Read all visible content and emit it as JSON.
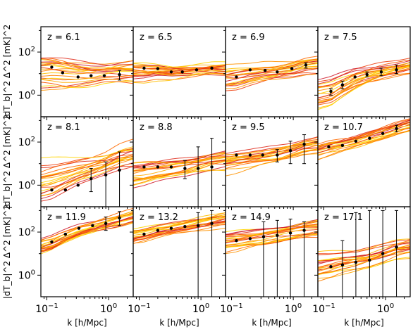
{
  "figure": {
    "xlabel": "k  [h/Mpc]",
    "ylabel": "|dT_b|^2 Δ^2  [mK]^2"
  },
  "chart_data": [
    {
      "type": "line",
      "title": "z = 6.1",
      "xscale": "log",
      "yscale": "log",
      "xlim": [
        0.08,
        2.5
      ],
      "ylim": [
        0.1,
        1500
      ],
      "xticks": [
        "10^-1",
        "10^0"
      ],
      "yticks": [
        "10^0",
        "10^2"
      ],
      "points": {
        "x": [
          0.12,
          0.18,
          0.32,
          0.52,
          0.85,
          1.5
        ],
        "y": [
          20,
          11,
          7,
          8,
          8,
          9
        ],
        "err_lo": [
          null,
          null,
          null,
          null,
          null,
          5
        ],
        "err_hi": [
          null,
          null,
          null,
          null,
          null,
          14
        ]
      },
      "bands": {
        "mid": [
          10,
          9,
          8,
          8,
          9,
          10
        ],
        "spread": [
          0.8,
          0.8,
          0.7,
          0.6,
          0.5,
          0.5
        ],
        "slope": 0
      }
    },
    {
      "type": "line",
      "title": "z = 6.5",
      "xscale": "log",
      "yscale": "log",
      "xlim": [
        0.08,
        2.5
      ],
      "ylim": [
        0.1,
        1500
      ],
      "points": {
        "x": [
          0.12,
          0.2,
          0.33,
          0.5,
          0.85,
          1.5
        ],
        "y": [
          18,
          17,
          12,
          12,
          15,
          18
        ],
        "err_lo": [
          null,
          null,
          null,
          null,
          null,
          null
        ],
        "err_hi": [
          null,
          null,
          null,
          null,
          null,
          null
        ]
      },
      "bands": {
        "mid": [
          12,
          13,
          12,
          13,
          15,
          17
        ],
        "spread": [
          0.5,
          0.4,
          0.35,
          0.3,
          0.3,
          0.3
        ],
        "slope": 0
      }
    },
    {
      "type": "line",
      "title": "z = 6.9",
      "xscale": "log",
      "yscale": "log",
      "xlim": [
        0.08,
        2.5
      ],
      "ylim": [
        0.1,
        1500
      ],
      "points": {
        "x": [
          0.12,
          0.2,
          0.35,
          0.55,
          0.95,
          1.6
        ],
        "y": [
          7,
          15,
          14,
          12,
          17,
          25
        ],
        "err_lo": [
          null,
          null,
          null,
          null,
          null,
          18
        ],
        "err_hi": [
          null,
          null,
          null,
          null,
          null,
          32
        ]
      },
      "bands": {
        "mid": [
          8,
          10,
          12,
          13,
          16,
          22
        ],
        "spread": [
          0.6,
          0.5,
          0.45,
          0.4,
          0.35,
          0.3
        ],
        "slope": 0.2
      }
    },
    {
      "type": "line",
      "title": "z = 7.5",
      "xscale": "log",
      "yscale": "log",
      "xlim": [
        0.08,
        2.5
      ],
      "ylim": [
        0.1,
        1500
      ],
      "points": {
        "x": [
          0.13,
          0.2,
          0.32,
          0.5,
          0.85,
          1.5
        ],
        "y": [
          1.5,
          3,
          7,
          9,
          12,
          15
        ],
        "err_lo": [
          1,
          2,
          null,
          7,
          8,
          10
        ],
        "err_hi": [
          2,
          4.5,
          null,
          12,
          18,
          25
        ]
      },
      "bands": {
        "mid": [
          1.5,
          3,
          6,
          9,
          13,
          18
        ],
        "spread": [
          0.7,
          0.6,
          0.5,
          0.4,
          0.35,
          0.3
        ],
        "slope": 0.6
      }
    },
    {
      "type": "line",
      "title": "z = 8.1",
      "xscale": "log",
      "yscale": "log",
      "xlim": [
        0.08,
        2.5
      ],
      "ylim": [
        0.1,
        1500
      ],
      "points": {
        "x": [
          0.12,
          0.2,
          0.32,
          0.52,
          0.9,
          1.5
        ],
        "y": [
          0.6,
          0.6,
          1,
          2,
          3,
          5
        ],
        "err_lo": [
          null,
          null,
          null,
          0.5,
          0.1,
          0.1
        ],
        "err_hi": [
          null,
          null,
          null,
          6,
          12,
          35
        ]
      },
      "bands": {
        "mid": [
          1.5,
          2.5,
          4,
          6,
          10,
          18
        ],
        "spread": [
          0.9,
          0.8,
          0.7,
          0.6,
          0.5,
          0.5
        ],
        "slope": 0.6
      }
    },
    {
      "type": "line",
      "title": "z = 8.8",
      "xscale": "log",
      "yscale": "log",
      "xlim": [
        0.08,
        2.5
      ],
      "ylim": [
        0.1,
        1500
      ],
      "points": {
        "x": [
          0.12,
          0.2,
          0.33,
          0.55,
          0.9,
          1.5
        ],
        "y": [
          7,
          7,
          7,
          6,
          6,
          7
        ],
        "err_lo": [
          null,
          null,
          null,
          2,
          0.1,
          0.1
        ],
        "err_hi": [
          null,
          null,
          null,
          14,
          60,
          150
        ]
      },
      "bands": {
        "mid": [
          4,
          5,
          6,
          7,
          9,
          12
        ],
        "spread": [
          0.6,
          0.55,
          0.5,
          0.45,
          0.4,
          0.4
        ],
        "slope": 0.3
      }
    },
    {
      "type": "line",
      "title": "z = 9.5",
      "xscale": "log",
      "yscale": "log",
      "xlim": [
        0.08,
        2.5
      ],
      "ylim": [
        0.1,
        1500
      ],
      "points": {
        "x": [
          0.12,
          0.2,
          0.32,
          0.55,
          0.9,
          1.5
        ],
        "y": [
          25,
          25,
          25,
          25,
          40,
          80
        ],
        "err_lo": [
          null,
          null,
          null,
          12,
          10,
          10
        ],
        "err_hi": [
          null,
          null,
          null,
          45,
          110,
          220
        ]
      },
      "bands": {
        "mid": [
          15,
          18,
          22,
          28,
          40,
          60
        ],
        "spread": [
          0.5,
          0.45,
          0.4,
          0.4,
          0.35,
          0.35
        ],
        "slope": 0.4
      }
    },
    {
      "type": "line",
      "title": "z = 10.7",
      "xscale": "log",
      "yscale": "log",
      "xlim": [
        0.08,
        2.5
      ],
      "ylim": [
        0.1,
        1500
      ],
      "points": {
        "x": [
          0.12,
          0.2,
          0.33,
          0.55,
          0.9,
          1.5
        ],
        "y": [
          60,
          70,
          110,
          150,
          250,
          420
        ],
        "err_lo": [
          null,
          null,
          null,
          null,
          null,
          300
        ],
        "err_hi": [
          null,
          null,
          null,
          null,
          null,
          600
        ]
      },
      "bands": {
        "mid": [
          50,
          70,
          100,
          160,
          250,
          400
        ],
        "spread": [
          0.3,
          0.28,
          0.26,
          0.25,
          0.25,
          0.25
        ],
        "slope": 0.8
      }
    },
    {
      "type": "line",
      "title": "z = 11.9",
      "xscale": "log",
      "yscale": "log",
      "xlim": [
        0.08,
        2.5
      ],
      "ylim": [
        0.1,
        1500
      ],
      "points": {
        "x": [
          0.12,
          0.2,
          0.33,
          0.55,
          0.9,
          1.5
        ],
        "y": [
          35,
          80,
          150,
          200,
          250,
          450
        ],
        "err_lo": [
          null,
          null,
          null,
          null,
          120,
          200
        ],
        "err_hi": [
          null,
          null,
          null,
          null,
          500,
          900
        ]
      },
      "bands": {
        "mid": [
          35,
          70,
          130,
          200,
          300,
          450
        ],
        "spread": [
          0.35,
          0.3,
          0.3,
          0.3,
          0.3,
          0.3
        ],
        "slope": 0.8
      }
    },
    {
      "type": "line",
      "title": "z = 13.2",
      "xscale": "log",
      "yscale": "log",
      "xlim": [
        0.08,
        2.5
      ],
      "ylim": [
        0.1,
        1500
      ],
      "points": {
        "x": [
          0.12,
          0.2,
          0.33,
          0.55,
          0.9,
          1.5
        ],
        "y": [
          80,
          120,
          150,
          180,
          200,
          250
        ],
        "err_lo": [
          null,
          null,
          null,
          null,
          0.1,
          0.1
        ],
        "err_hi": [
          null,
          null,
          null,
          null,
          800,
          1000
        ]
      },
      "bands": {
        "mid": [
          70,
          100,
          130,
          170,
          220,
          280
        ],
        "spread": [
          0.35,
          0.32,
          0.3,
          0.3,
          0.3,
          0.3
        ],
        "slope": 0.5
      }
    },
    {
      "type": "line",
      "title": "z = 14.9",
      "xscale": "log",
      "yscale": "log",
      "xlim": [
        0.08,
        2.5
      ],
      "ylim": [
        0.1,
        1500
      ],
      "points": {
        "x": [
          0.12,
          0.2,
          0.33,
          0.55,
          0.9,
          1.5
        ],
        "y": [
          40,
          50,
          60,
          70,
          90,
          120
        ],
        "err_lo": [
          null,
          null,
          0.1,
          0.1,
          0.1,
          0.1
        ],
        "err_hi": [
          null,
          null,
          300,
          350,
          400,
          300
        ]
      },
      "bands": {
        "mid": [
          35,
          45,
          55,
          70,
          90,
          120
        ],
        "spread": [
          0.45,
          0.4,
          0.4,
          0.4,
          0.4,
          0.4
        ],
        "slope": 0.4
      }
    },
    {
      "type": "line",
      "title": "z = 17.1",
      "xscale": "log",
      "yscale": "log",
      "xlim": [
        0.08,
        2.5
      ],
      "ylim": [
        0.1,
        1500
      ],
      "points": {
        "x": [
          0.13,
          0.2,
          0.33,
          0.55,
          0.9,
          1.5
        ],
        "y": [
          2.5,
          3,
          4,
          5,
          10,
          20
        ],
        "err_lo": [
          null,
          0.1,
          0.1,
          0.1,
          0.1,
          0.1
        ],
        "err_hi": [
          null,
          40,
          800,
          1000,
          1000,
          1000
        ]
      },
      "bands": {
        "mid": [
          3,
          4,
          5,
          7,
          11,
          18
        ],
        "spread": [
          0.6,
          0.55,
          0.5,
          0.5,
          0.5,
          0.5
        ],
        "slope": 0.5
      }
    }
  ],
  "colors": {
    "curves": [
      "#ffd400",
      "#ffbf00",
      "#ffaa00",
      "#ff9400",
      "#ff7f00",
      "#ff6a00",
      "#f75500",
      "#ee4010",
      "#e03020",
      "#d02030"
    ],
    "points": "#000000"
  }
}
